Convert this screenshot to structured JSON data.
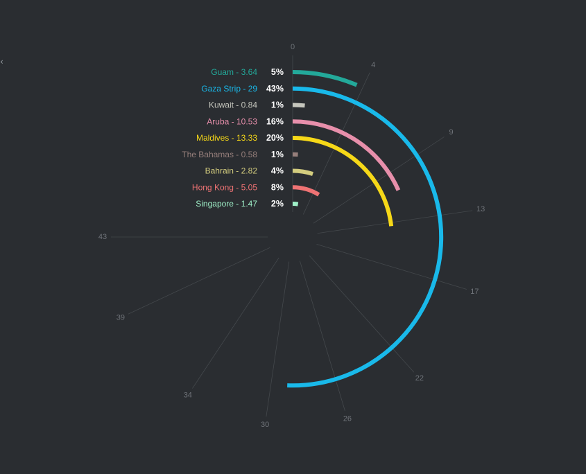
{
  "chart_data": {
    "type": "radial-bar",
    "title": "",
    "axis": {
      "min": 0,
      "max": 43,
      "ticks": [
        0,
        4,
        9,
        13,
        17,
        22,
        26,
        30,
        34,
        39,
        43
      ]
    },
    "series": [
      {
        "name": "Guam",
        "value": 3.64,
        "label": "Guam - 3.64",
        "percent_label": "5%",
        "color": "#23a99a"
      },
      {
        "name": "Gaza Strip",
        "value": 29,
        "label": "Gaza Strip - 29",
        "percent_label": "43%",
        "color": "#19b9ea"
      },
      {
        "name": "Kuwait",
        "value": 0.84,
        "label": "Kuwait - 0.84",
        "percent_label": "1%",
        "color": "#c5c6bd"
      },
      {
        "name": "Aruba",
        "value": 10.53,
        "label": "Aruba - 10.53",
        "percent_label": "16%",
        "color": "#e78fab"
      },
      {
        "name": "Maldives",
        "value": 13.33,
        "label": "Maldives - 13.33",
        "percent_label": "20%",
        "color": "#f6d818"
      },
      {
        "name": "The Bahamas",
        "value": 0.58,
        "label": "The Bahamas - 0.58",
        "percent_label": "1%",
        "color": "#967f7b"
      },
      {
        "name": "Bahrain",
        "value": 2.82,
        "label": "Bahrain - 2.82",
        "percent_label": "4%",
        "color": "#d3cc7e"
      },
      {
        "name": "Hong Kong",
        "value": 5.05,
        "label": "Hong Kong - 5.05",
        "percent_label": "8%",
        "color": "#ef7374"
      },
      {
        "name": "Singapore",
        "value": 1.47,
        "label": "Singapore - 1.47",
        "percent_label": "2%",
        "color": "#9ff0c8"
      }
    ],
    "colors": {
      "background": "#2a2d31",
      "grid": "#5a5e63",
      "tick_text": "#6f7379"
    }
  },
  "page": {
    "corner_mark": "‹"
  }
}
